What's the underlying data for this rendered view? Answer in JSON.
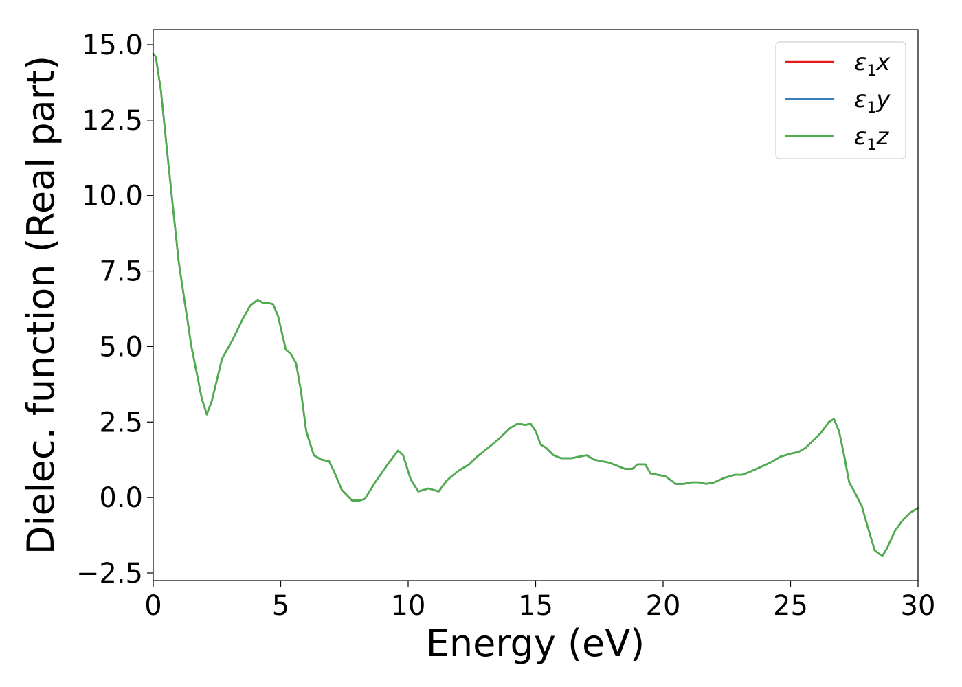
{
  "chart_data": {
    "type": "line",
    "xlabel": "Energy (eV)",
    "ylabel": "Dielec. function (Real part)",
    "xlim": [
      0,
      30
    ],
    "ylim": [
      -2.75,
      15.5
    ],
    "xticks": [
      0,
      5,
      10,
      15,
      20,
      25,
      30
    ],
    "xtick_labels": [
      "0",
      "5",
      "10",
      "15",
      "20",
      "25",
      "30"
    ],
    "yticks": [
      -2.5,
      0.0,
      2.5,
      5.0,
      7.5,
      10.0,
      12.5,
      15.0
    ],
    "ytick_labels": [
      "−2.5",
      "0.0",
      "2.5",
      "5.0",
      "7.5",
      "10.0",
      "12.5",
      "15.0"
    ],
    "grid": false,
    "legend_position": "top-right",
    "legend": [
      {
        "symbol": "ε",
        "sub": "1",
        "axis": "x"
      },
      {
        "symbol": "ε",
        "sub": "1",
        "axis": "y"
      },
      {
        "symbol": "ε",
        "sub": "1",
        "axis": "z"
      }
    ],
    "series": [
      {
        "color": "#e41a1c",
        "x": [],
        "y": []
      },
      {
        "color": "#377eb8",
        "x": [],
        "y": []
      },
      {
        "color": "#4daf4a",
        "x": [],
        "y": []
      }
    ],
    "shared_x": [
      0,
      0.1,
      0.3,
      0.6,
      1.0,
      1.5,
      1.9,
      2.1,
      2.3,
      2.7,
      3.1,
      3.5,
      3.8,
      4.1,
      4.3,
      4.5,
      4.7,
      4.9,
      5.2,
      5.4,
      5.6,
      5.8,
      6.0,
      6.3,
      6.6,
      6.9,
      7.1,
      7.4,
      7.8,
      8.1,
      8.3,
      8.7,
      9.2,
      9.6,
      9.8,
      10.1,
      10.4,
      10.8,
      11.0,
      11.2,
      11.5,
      11.7,
      12.0,
      12.4,
      12.7,
      13.0,
      13.5,
      14.0,
      14.3,
      14.6,
      14.8,
      15.0,
      15.2,
      15.4,
      15.7,
      16.0,
      16.4,
      16.7,
      17.0,
      17.3,
      17.6,
      17.9,
      18.2,
      18.5,
      18.8,
      19.0,
      19.3,
      19.5,
      19.8,
      20.1,
      20.5,
      20.8,
      21.1,
      21.4,
      21.7,
      22.0,
      22.4,
      22.8,
      23.1,
      23.4,
      23.8,
      24.2,
      24.6,
      25.0,
      25.3,
      25.6,
      25.9,
      26.2,
      26.5,
      26.7,
      26.9,
      27.1,
      27.3,
      27.5,
      27.8,
      28.0,
      28.3,
      28.6,
      28.8,
      29.1,
      29.4,
      29.7,
      30.0
    ],
    "shared_y": [
      14.7,
      14.6,
      13.5,
      11.0,
      7.8,
      5.0,
      3.3,
      2.75,
      3.2,
      4.6,
      5.2,
      5.9,
      6.35,
      6.55,
      6.45,
      6.45,
      6.4,
      6.0,
      4.9,
      4.75,
      4.45,
      3.5,
      2.2,
      1.4,
      1.25,
      1.2,
      0.85,
      0.25,
      -0.1,
      -0.1,
      -0.05,
      0.5,
      1.1,
      1.55,
      1.4,
      0.6,
      0.2,
      0.3,
      0.25,
      0.2,
      0.55,
      0.7,
      0.9,
      1.1,
      1.35,
      1.55,
      1.9,
      2.3,
      2.45,
      2.4,
      2.45,
      2.2,
      1.75,
      1.65,
      1.4,
      1.3,
      1.3,
      1.35,
      1.4,
      1.25,
      1.2,
      1.15,
      1.05,
      0.95,
      0.95,
      1.1,
      1.1,
      0.8,
      0.75,
      0.7,
      0.45,
      0.45,
      0.5,
      0.5,
      0.45,
      0.5,
      0.65,
      0.75,
      0.75,
      0.85,
      1.0,
      1.15,
      1.35,
      1.45,
      1.5,
      1.65,
      1.9,
      2.15,
      2.5,
      2.6,
      2.2,
      1.4,
      0.5,
      0.2,
      -0.3,
      -0.9,
      -1.75,
      -1.95,
      -1.65,
      -1.1,
      -0.75,
      -0.5,
      -0.35
    ]
  }
}
